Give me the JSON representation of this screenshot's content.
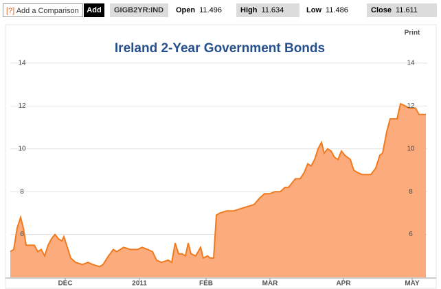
{
  "toolbar": {
    "help": "[?]",
    "comparison_placeholder": "Add a Comparison",
    "add": "Add",
    "ticker": "GIGB2YR:IND",
    "stats": [
      {
        "label": "Open",
        "value": 11.496
      },
      {
        "label": "High",
        "value": 11.634
      },
      {
        "label": "Low",
        "value": 11.486
      },
      {
        "label": "Close",
        "value": 11.611
      }
    ],
    "print": "Print"
  },
  "chart_data": {
    "type": "area",
    "title": "Ireland 2-Year Government Bonds",
    "x": [
      15,
      20,
      25,
      30,
      34,
      38,
      45,
      50,
      55,
      60,
      65,
      70,
      75,
      80,
      85,
      90,
      93,
      98,
      103,
      110,
      120,
      128,
      135,
      145,
      150,
      158,
      165,
      170,
      180,
      190,
      200,
      207,
      215,
      222,
      228,
      235,
      245,
      250,
      255,
      260,
      265,
      270,
      274,
      278,
      285,
      292,
      296,
      302,
      306,
      311,
      315,
      320,
      330,
      340,
      350,
      360,
      370,
      378,
      385,
      393,
      400,
      408,
      415,
      420,
      425,
      430,
      437,
      443,
      448,
      453,
      458,
      463,
      468,
      472,
      477,
      482,
      487,
      492,
      497,
      502,
      510,
      515,
      520,
      527,
      535,
      540,
      547,
      553,
      557,
      563,
      568,
      573,
      578,
      583,
      590,
      595,
      600,
      605,
      610,
      615,
      620
    ],
    "series": [
      {
        "name": "GIGB2YR:IND",
        "color": "#f07a1e",
        "fill": "#fbab7c",
        "values": [
          5.2,
          5.3,
          6.3,
          6.8,
          6.3,
          5.5,
          5.5,
          5.5,
          5.2,
          5.3,
          5.0,
          5.5,
          5.8,
          6.0,
          5.8,
          5.7,
          5.9,
          5.4,
          4.9,
          4.7,
          4.6,
          4.7,
          4.6,
          4.5,
          4.6,
          5.0,
          5.3,
          5.2,
          5.4,
          5.3,
          5.3,
          5.4,
          5.3,
          5.2,
          4.8,
          4.7,
          4.8,
          4.7,
          5.6,
          5.1,
          5.1,
          5.0,
          5.6,
          5.1,
          5.0,
          5.4,
          4.9,
          5.0,
          4.9,
          4.9,
          6.9,
          7.0,
          7.1,
          7.1,
          7.2,
          7.3,
          7.4,
          7.7,
          7.9,
          7.9,
          8.0,
          8.0,
          8.2,
          8.2,
          8.4,
          8.6,
          8.6,
          8.9,
          9.3,
          9.2,
          9.5,
          10.0,
          10.3,
          9.8,
          10.0,
          9.9,
          9.6,
          9.5,
          9.9,
          9.7,
          9.5,
          9.0,
          8.9,
          8.8,
          8.8,
          8.8,
          9.1,
          9.7,
          9.8,
          10.8,
          11.4,
          11.4,
          11.4,
          12.1,
          12.0,
          11.9,
          11.9,
          11.9,
          11.6,
          11.6,
          11.6
        ]
      }
    ],
    "xlim": [
      15,
      622
    ],
    "xticks": [
      {
        "value": 95,
        "label": "DEC"
      },
      {
        "value": 203,
        "label": "2011"
      },
      {
        "value": 300,
        "label": "FEB"
      },
      {
        "value": 393,
        "label": "MAR"
      },
      {
        "value": 500,
        "label": "APR"
      },
      {
        "value": 600,
        "label": "MAY"
      }
    ],
    "ylim": [
      4,
      15.6
    ],
    "yticks": [
      6,
      8,
      10,
      12,
      14
    ],
    "grid": true
  }
}
